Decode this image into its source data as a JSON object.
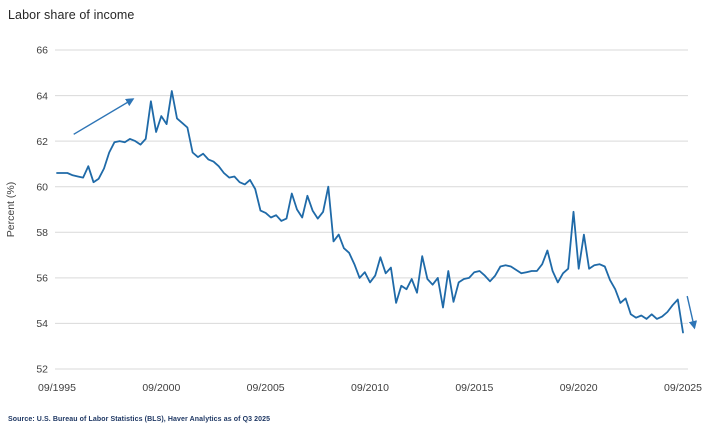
{
  "chart": {
    "title": "Labor share of income",
    "source": "Source: U.S. Bureau of Labor Statistics (BLS), Haver Analytics as of Q3 2025"
  },
  "colors": {
    "line": "#1f6aa8",
    "arrow": "#2e75b6",
    "grid": "#d9d9d9",
    "tick_text": "#404040",
    "title_text": "#262626",
    "source_text": "#1f3864"
  },
  "chart_data": {
    "type": "line",
    "title": "Labor share of income",
    "xlabel": "",
    "ylabel": "Percent (%)",
    "ylim": [
      52,
      66
    ],
    "yticks": [
      52,
      54,
      56,
      58,
      60,
      62,
      64,
      66
    ],
    "xticks": [
      {
        "label": "09/1995",
        "year": 1995.75
      },
      {
        "label": "09/2000",
        "year": 2000.75
      },
      {
        "label": "09/2005",
        "year": 2005.75
      },
      {
        "label": "09/2010",
        "year": 2010.75
      },
      {
        "label": "09/2015",
        "year": 2015.75
      },
      {
        "label": "09/2020",
        "year": 2020.75
      },
      {
        "label": "09/2025",
        "year": 2025.75
      }
    ],
    "grid": "horizontal",
    "legend": "none",
    "series": [
      {
        "name": "Labor share of income",
        "frequency": "quarterly",
        "start": "1995Q3",
        "end": "2025Q3",
        "values": [
          60.6,
          60.6,
          60.6,
          60.5,
          60.45,
          60.4,
          60.9,
          60.2,
          60.35,
          60.8,
          61.5,
          61.95,
          62.0,
          61.95,
          62.1,
          62.0,
          61.85,
          62.1,
          63.75,
          62.4,
          63.1,
          62.75,
          64.2,
          63.0,
          62.8,
          62.6,
          61.5,
          61.3,
          61.45,
          61.2,
          61.1,
          60.9,
          60.6,
          60.4,
          60.45,
          60.2,
          60.1,
          60.3,
          59.9,
          58.95,
          58.85,
          58.65,
          58.75,
          58.5,
          58.6,
          59.7,
          59.0,
          58.65,
          59.6,
          58.95,
          58.6,
          58.9,
          60.0,
          57.6,
          57.9,
          57.3,
          57.1,
          56.6,
          56.0,
          56.25,
          55.8,
          56.1,
          56.9,
          56.2,
          56.45,
          54.9,
          55.65,
          55.5,
          55.95,
          55.35,
          56.95,
          55.95,
          55.7,
          56.0,
          54.7,
          56.3,
          54.95,
          55.8,
          55.95,
          56.0,
          56.25,
          56.3,
          56.1,
          55.85,
          56.1,
          56.5,
          56.55,
          56.5,
          56.35,
          56.2,
          56.25,
          56.3,
          56.3,
          56.6,
          57.2,
          56.3,
          55.8,
          56.2,
          56.4,
          58.9,
          56.4,
          57.9,
          56.4,
          56.55,
          56.6,
          56.5,
          55.9,
          55.5,
          54.9,
          55.1,
          54.4,
          54.25,
          54.35,
          54.2,
          54.4,
          54.2,
          54.3,
          54.5,
          54.8,
          55.05,
          53.6
        ]
      }
    ],
    "annotations": {
      "arrows": [
        {
          "direction": "up-right",
          "from": {
            "year": 1996.55,
            "value": 62.3
          },
          "to": {
            "year": 1999.4,
            "value": 63.85
          }
        },
        {
          "direction": "down",
          "from": {
            "year": 2025.95,
            "value": 55.2
          },
          "to": {
            "year": 2026.3,
            "value": 53.8
          }
        }
      ]
    }
  }
}
